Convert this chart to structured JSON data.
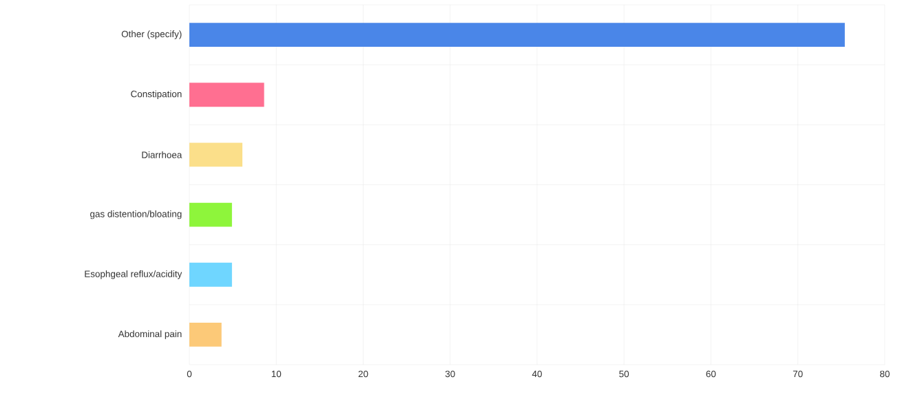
{
  "chart_data": {
    "type": "bar",
    "orientation": "horizontal",
    "categories": [
      "Other (specify)",
      "Constipation",
      "Diarrhoea",
      "gas distention/bloating",
      "Esophgeal reflux/acidity",
      "Abdominal pain"
    ],
    "values": [
      75.4,
      8.6,
      6.1,
      4.9,
      4.9,
      3.7
    ],
    "colors": [
      "#4a86e8",
      "#ff6f91",
      "#fbdf8a",
      "#8ef53b",
      "#6fd6ff",
      "#fcc978"
    ],
    "xlim": [
      0,
      80
    ],
    "xticks": [
      0,
      10,
      20,
      30,
      40,
      50,
      60,
      70,
      80
    ],
    "grid": true
  }
}
